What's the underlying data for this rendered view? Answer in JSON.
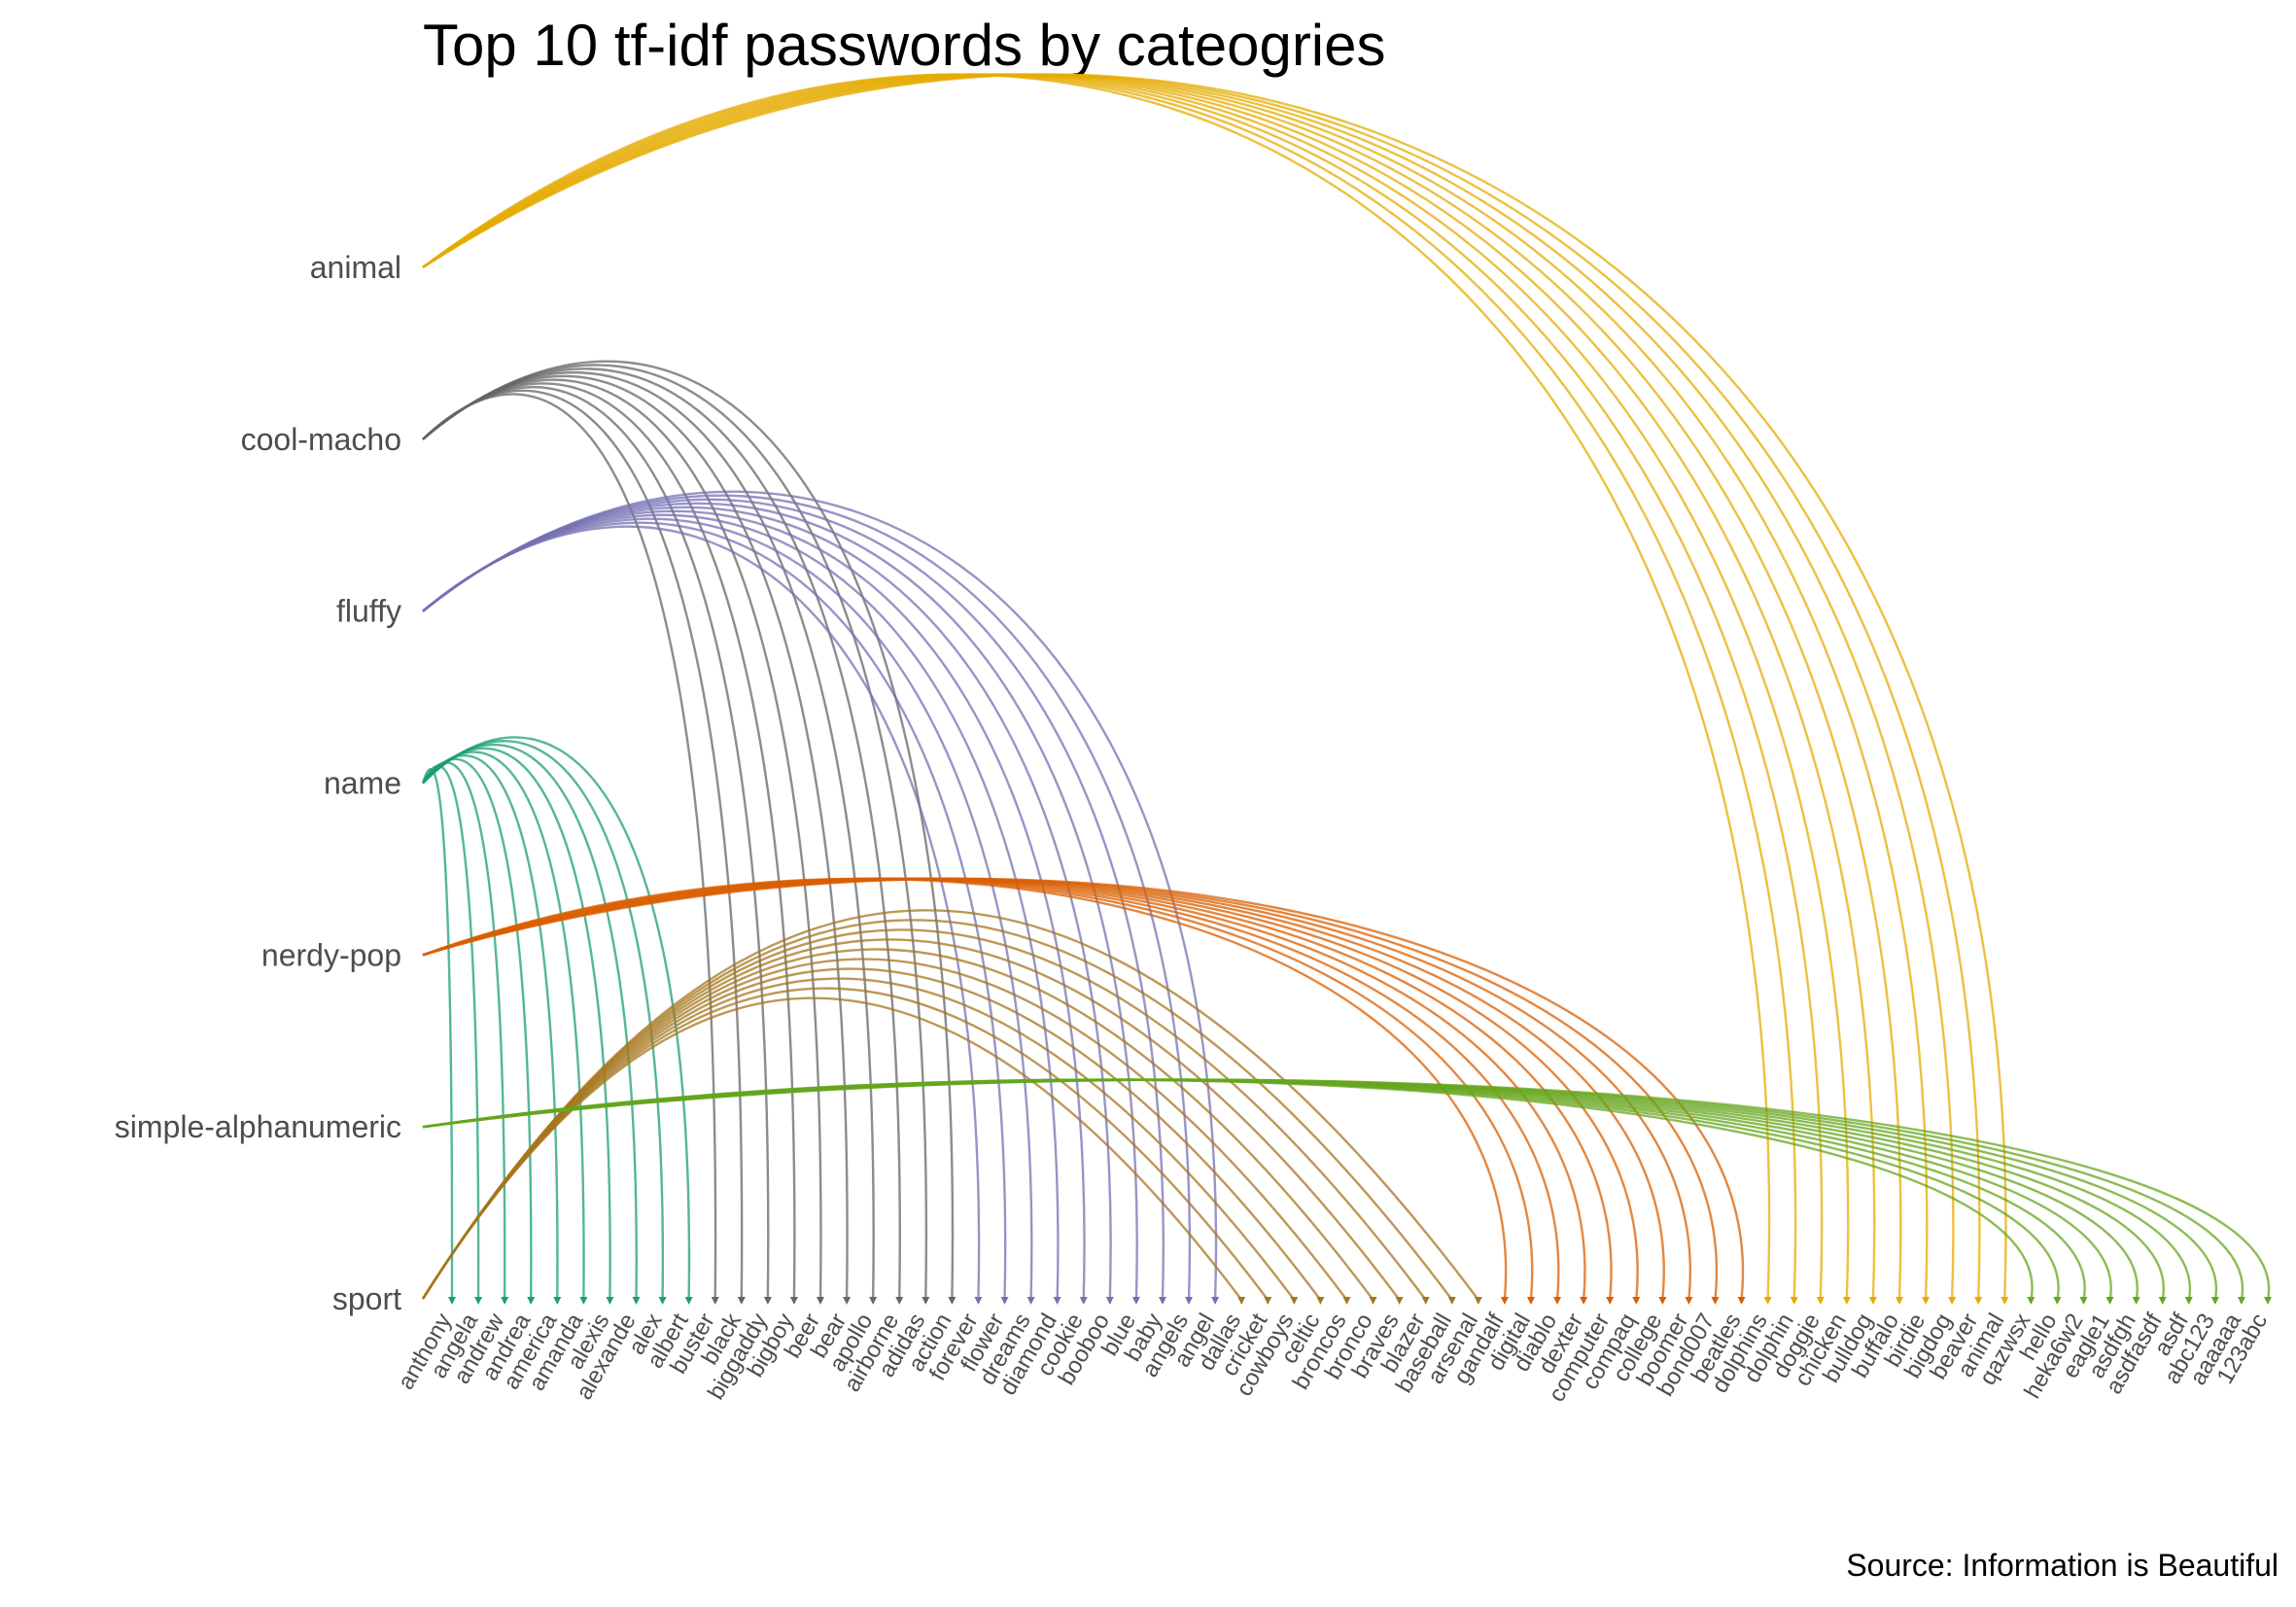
{
  "chart_data": {
    "type": "arc-diagram",
    "title": "Top 10 tf-idf passwords by cateogries",
    "caption": "Source: Information is Beautiful",
    "categories": [
      "animal",
      "cool-macho",
      "fluffy",
      "name",
      "nerdy-pop",
      "simple-alphanumeric",
      "sport"
    ],
    "passwords": [
      "anthony",
      "angela",
      "andrew",
      "andrea",
      "america",
      "amanda",
      "alexis",
      "alexande",
      "alex",
      "albert",
      "buster",
      "black",
      "biggaddy",
      "bigboy",
      "beer",
      "bear",
      "apollo",
      "airborne",
      "adidas",
      "action",
      "forever",
      "flower",
      "dreams",
      "diamond",
      "cookie",
      "booboo",
      "blue",
      "baby",
      "angels",
      "angel",
      "dallas",
      "cricket",
      "cowboys",
      "celtic",
      "broncos",
      "bronco",
      "braves",
      "blazer",
      "baseball",
      "arsenal",
      "gandalf",
      "digital",
      "diablo",
      "dexter",
      "computer",
      "compaq",
      "college",
      "boomer",
      "bond007",
      "beatles",
      "dolphins",
      "dolphin",
      "doggie",
      "chicken",
      "bulldog",
      "buffalo",
      "birdie",
      "bigdog",
      "beaver",
      "animal",
      "qazwsx",
      "hello",
      "heka6w2",
      "eagle1",
      "asdfgh",
      "asdfasdf",
      "asdf",
      "abc123",
      "aaaaaa",
      "123abc"
    ],
    "links": [
      {
        "category": "name",
        "passwords": [
          "anthony",
          "angela",
          "andrew",
          "andrea",
          "america",
          "amanda",
          "alexis",
          "alexande",
          "alex",
          "albert"
        ]
      },
      {
        "category": "cool-macho",
        "passwords": [
          "buster",
          "black",
          "biggaddy",
          "bigboy",
          "beer",
          "bear",
          "apollo",
          "airborne",
          "adidas",
          "action"
        ]
      },
      {
        "category": "fluffy",
        "passwords": [
          "forever",
          "flower",
          "dreams",
          "diamond",
          "cookie",
          "booboo",
          "blue",
          "baby",
          "angels",
          "angel"
        ]
      },
      {
        "category": "sport",
        "passwords": [
          "dallas",
          "cricket",
          "cowboys",
          "celtic",
          "broncos",
          "bronco",
          "braves",
          "blazer",
          "baseball",
          "arsenal"
        ]
      },
      {
        "category": "nerdy-pop",
        "passwords": [
          "gandalf",
          "digital",
          "diablo",
          "dexter",
          "computer",
          "compaq",
          "college",
          "boomer",
          "bond007",
          "beatles"
        ]
      },
      {
        "category": "animal",
        "passwords": [
          "dolphins",
          "dolphin",
          "doggie",
          "chicken",
          "bulldog",
          "buffalo",
          "birdie",
          "bigdog",
          "beaver",
          "animal"
        ]
      },
      {
        "category": "simple-alphanumeric",
        "passwords": [
          "qazwsx",
          "hello",
          "heka6w2",
          "eagle1",
          "asdfgh",
          "asdfasdf",
          "asdf",
          "abc123",
          "aaaaaa",
          "123abc"
        ]
      }
    ],
    "colors": {
      "name": "#1b9e77",
      "cool-macho": "#666666",
      "fluffy": "#7570b3",
      "sport": "#a6761d",
      "nerdy-pop": "#d95f02",
      "animal": "#e6ab02",
      "simple-alphanumeric": "#66a61e"
    },
    "grid": false,
    "legend": "none"
  }
}
